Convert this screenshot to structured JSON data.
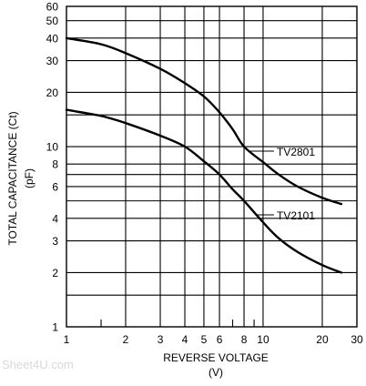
{
  "chart_data": {
    "type": "line",
    "title": "",
    "xlabel": "REVERSE VOLTAGE",
    "xlabel_unit": "(V)",
    "ylabel": "TOTAL CAPACITANCE (Ct)",
    "ylabel_unit": "(pF)",
    "x_scale": "log",
    "y_scale": "log",
    "xlim": [
      1,
      30
    ],
    "ylim": [
      1,
      60
    ],
    "grid": true,
    "x_ticks": [
      {
        "value": 1,
        "label": "1"
      },
      {
        "value": 2,
        "label": "2"
      },
      {
        "value": 3,
        "label": "3"
      },
      {
        "value": 4,
        "label": "4"
      },
      {
        "value": 5,
        "label": "5"
      },
      {
        "value": 6,
        "label": "6"
      },
      {
        "value": 8,
        "label": "8"
      },
      {
        "value": 10,
        "label": "10"
      },
      {
        "value": 20,
        "label": "20"
      },
      {
        "value": 30,
        "label": "30"
      }
    ],
    "x_minor_ticks": [
      1.5,
      7,
      9
    ],
    "y_ticks": [
      {
        "value": 1,
        "label": "1"
      },
      {
        "value": 2,
        "label": "2"
      },
      {
        "value": 3,
        "label": "3"
      },
      {
        "value": 4,
        "label": "4"
      },
      {
        "value": 6,
        "label": "6"
      },
      {
        "value": 8,
        "label": "8"
      },
      {
        "value": 10,
        "label": "10"
      },
      {
        "value": 20,
        "label": "20"
      },
      {
        "value": 30,
        "label": "30"
      },
      {
        "value": 40,
        "label": "40"
      },
      {
        "value": 50,
        "label": "50"
      },
      {
        "value": 60,
        "label": "60"
      }
    ],
    "y_extra_gridlines": [
      1.5,
      5,
      7,
      15
    ],
    "series": [
      {
        "name": "TV2801",
        "color": "#000000",
        "x": [
          1,
          1.5,
          2,
          3,
          4,
          5,
          6,
          7,
          8,
          10,
          12,
          15,
          20,
          25
        ],
        "y": [
          40,
          37,
          33,
          27,
          22.5,
          19,
          15.5,
          12.5,
          10,
          8.2,
          7,
          6,
          5.2,
          4.8
        ]
      },
      {
        "name": "TV2101",
        "color": "#000000",
        "x": [
          1,
          1.5,
          2,
          3,
          4,
          5,
          6,
          7,
          8,
          10,
          12,
          15,
          20,
          25
        ],
        "y": [
          16,
          14.8,
          13.5,
          11.5,
          10,
          8.3,
          7,
          5.8,
          5,
          3.8,
          3.1,
          2.6,
          2.2,
          2
        ]
      }
    ]
  },
  "watermark": "Sheet4U.com"
}
